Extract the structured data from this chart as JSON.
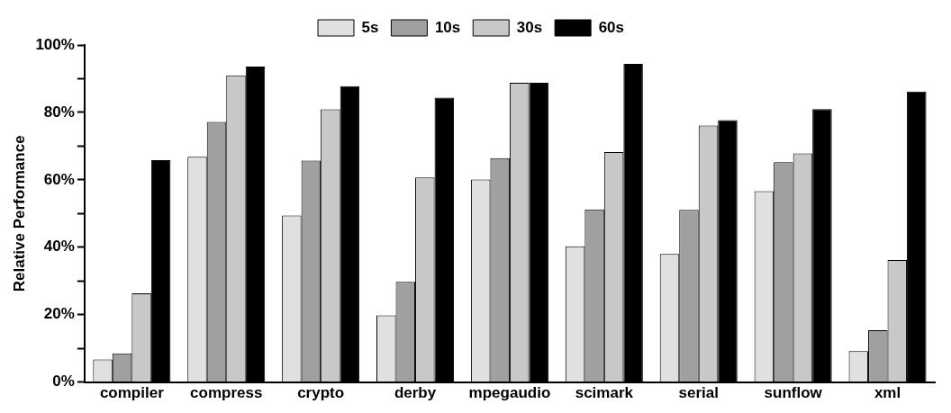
{
  "chart_data": {
    "type": "bar",
    "ylabel": "Relative Performance",
    "categories": [
      "compiler",
      "compress",
      "crypto",
      "derby",
      "mpegaudio",
      "scimark",
      "serial",
      "sunflow",
      "xml"
    ],
    "series": [
      {
        "name": "5s",
        "color": "#e0e0e0",
        "values": [
          6.7,
          66.8,
          49.4,
          19.8,
          60.1,
          40.3,
          38,
          56.6,
          9.2
        ]
      },
      {
        "name": "10s",
        "color": "#a0a0a0",
        "values": [
          8.5,
          77.2,
          65.7,
          29.7,
          66.4,
          51.2,
          51.1,
          65.2,
          15.4
        ]
      },
      {
        "name": "30s",
        "color": "#c8c8c8",
        "values": [
          26.3,
          91,
          80.9,
          60.7,
          88.8,
          68.2,
          76.1,
          67.8,
          36.2
        ]
      },
      {
        "name": "60s",
        "color": "#000000",
        "values": [
          65.8,
          93.6,
          87.8,
          84.4,
          88.8,
          94.4,
          77.7,
          81,
          86.2
        ]
      }
    ],
    "ylim": [
      0,
      100
    ],
    "yticks": [
      {
        "value": 0,
        "label": "0%"
      },
      {
        "value": 10,
        "label": null
      },
      {
        "value": 20,
        "label": "20%"
      },
      {
        "value": 30,
        "label": null
      },
      {
        "value": 40,
        "label": "40%"
      },
      {
        "value": 50,
        "label": null
      },
      {
        "value": 60,
        "label": "60%"
      },
      {
        "value": 70,
        "label": null
      },
      {
        "value": 80,
        "label": "80%"
      },
      {
        "value": 90,
        "label": null
      },
      {
        "value": 100,
        "label": "100%"
      }
    ],
    "grid": false,
    "legend": "top"
  }
}
